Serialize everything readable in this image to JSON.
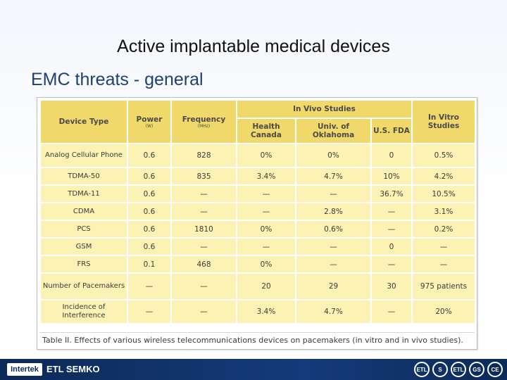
{
  "title": "Active implantable medical devices",
  "subtitle": "EMC threats - general",
  "table": {
    "headers": {
      "device_type": "Device Type",
      "power": "Power",
      "power_unit": "(W)",
      "frequency": "Frequency",
      "frequency_unit": "(MHz)",
      "in_vivo": "In Vivo Studies",
      "health_canada": "Health Canada",
      "oklahoma": "Univ. of Oklahoma",
      "fda": "U.S. FDA",
      "in_vitro": "In Vitro Studies"
    },
    "rows": [
      [
        "Analog Cellular Phone",
        "0.6",
        "828",
        "0%",
        "0%",
        "0",
        "0.5%"
      ],
      [
        "TDMA-50",
        "0.6",
        "835",
        "3.4%",
        "4.7%",
        "10%",
        "4.2%"
      ],
      [
        "TDMA-11",
        "0.6",
        "—",
        "—",
        "—",
        "36.7%",
        "10.5%"
      ],
      [
        "CDMA",
        "0.6",
        "—",
        "—",
        "2.8%",
        "—",
        "3.1%"
      ],
      [
        "PCS",
        "0.6",
        "1810",
        "0%",
        "0.6%",
        "—",
        "0.2%"
      ],
      [
        "GSM",
        "0.6",
        "—",
        "—",
        "—",
        "0",
        "—"
      ],
      [
        "FRS",
        "0.1",
        "468",
        "0%",
        "—",
        "—",
        "—"
      ],
      [
        "Number of Pacemakers",
        "—",
        "—",
        "20",
        "29",
        "30",
        "975 patients"
      ],
      [
        "Incidence of Interference",
        "—",
        "—",
        "3.4%",
        "4.7%",
        "—",
        "20%"
      ]
    ],
    "caption": "Table II. Effects of various wireless telecommunications devices on pacemakers (in vitro and in vivo studies)."
  },
  "footer": {
    "logo": "Intertek",
    "brand": "ETL SEMKO",
    "marks": [
      "ETL",
      "S",
      "ETL",
      "GS",
      "CE"
    ]
  }
}
